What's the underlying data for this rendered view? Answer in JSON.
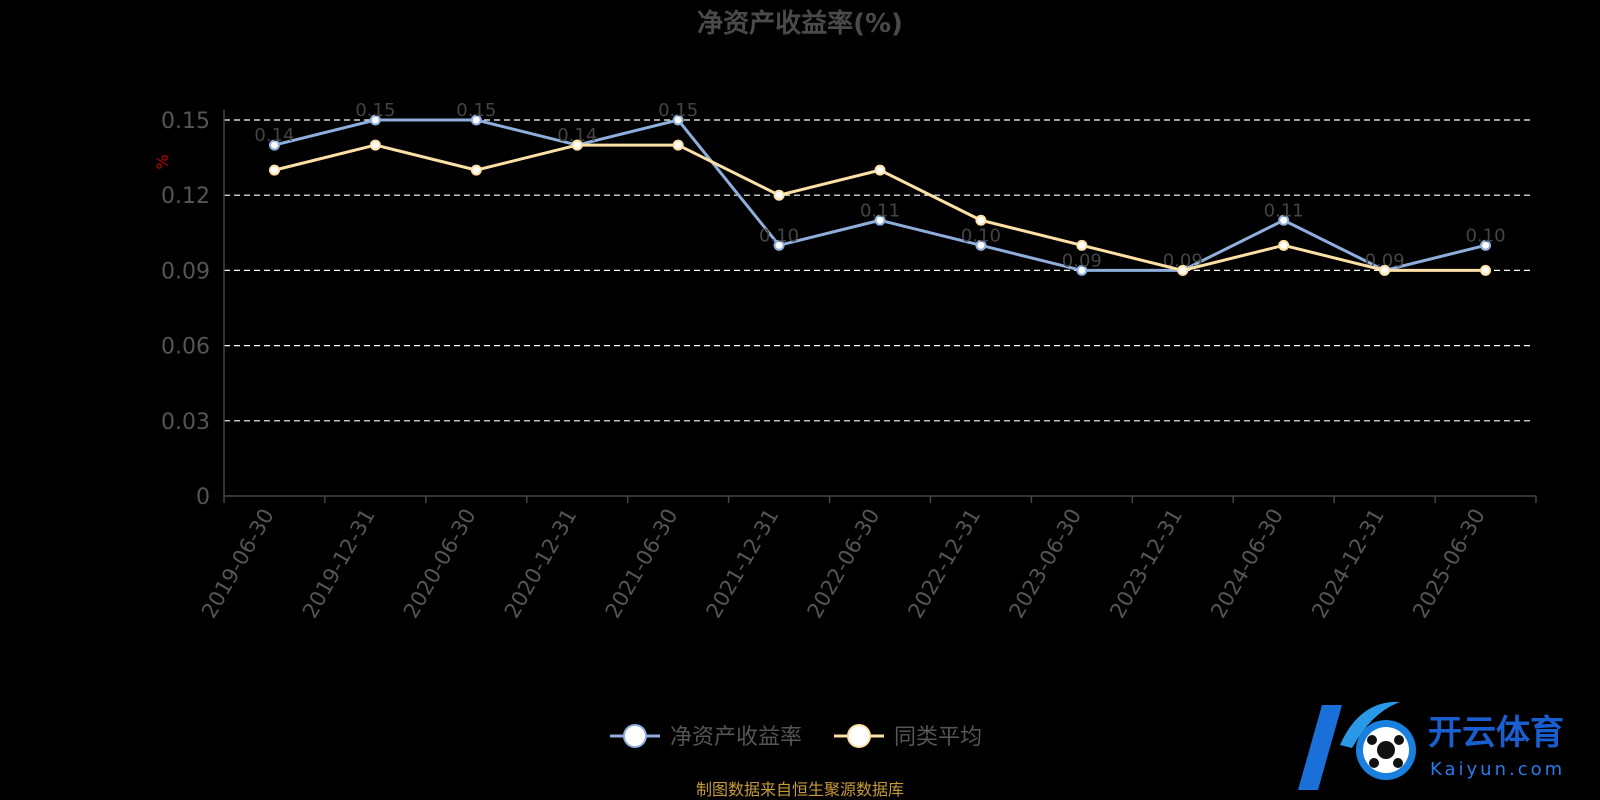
{
  "chart_data": {
    "type": "line",
    "title": "净资产收益率(%)",
    "ylabel": "%",
    "xlabel": "",
    "categories": [
      "2019-06-30",
      "2019-12-31",
      "2020-06-30",
      "2020-12-31",
      "2021-06-30",
      "2021-12-31",
      "2022-06-30",
      "2022-12-31",
      "2023-06-30",
      "2023-12-31",
      "2024-06-30",
      "2024-12-31",
      "2025-06-30"
    ],
    "y_ticks": [
      "0",
      "0.03",
      "0.06",
      "0.09",
      "0.12",
      "0.15"
    ],
    "ylim": [
      0,
      0.15
    ],
    "grid": true,
    "legend_position": "bottom",
    "series": [
      {
        "name": "净资产收益率",
        "color": "#8eaedc",
        "values": [
          0.14,
          0.15,
          0.15,
          0.14,
          0.15,
          0.1,
          0.11,
          0.1,
          0.09,
          0.09,
          0.11,
          0.09,
          0.1
        ]
      },
      {
        "name": "同类平均",
        "color": "#fde0a6",
        "values": [
          0.13,
          0.14,
          0.13,
          0.14,
          0.14,
          0.12,
          0.13,
          0.11,
          0.1,
          0.09,
          0.1,
          0.09,
          0.09
        ]
      }
    ]
  },
  "source_note": "制图数据来自恒生聚源数据库",
  "watermark": {
    "brand": "开云体育",
    "domain": "Kaiyun.com",
    "logo_icon": "soccer-ball-k-logo-icon"
  }
}
